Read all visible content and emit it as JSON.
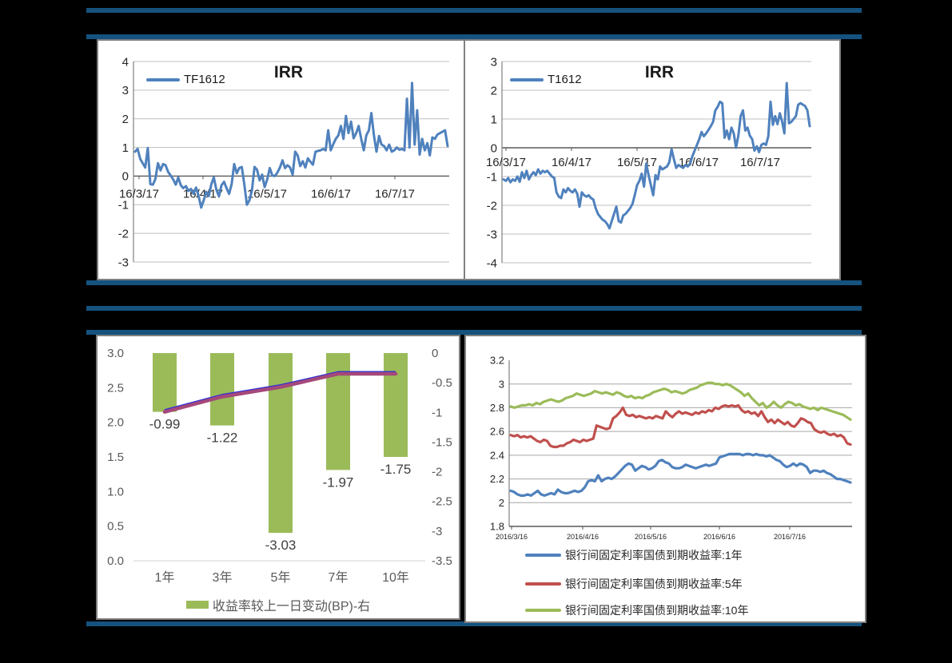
{
  "page": {
    "background_color": "#000000",
    "divider_color": "#15527E",
    "panel_color": "#FFFFFF"
  },
  "chart_data": [
    {
      "id": "tf1612_irr",
      "type": "line",
      "title": "IRR",
      "y_tick_labels": [
        "4",
        "3",
        "2",
        "1",
        "0",
        "-1",
        "-2",
        "-3"
      ],
      "x_tick_labels": [
        "16/3/17",
        "16/4/17",
        "16/5/17",
        "16/6/17",
        "16/7/17"
      ],
      "ylim": [
        -3,
        4
      ],
      "grid": true,
      "legend_position": "top-left",
      "series": [
        {
          "name": "TF1612",
          "color": "#4F81BD",
          "values": [
            0.85,
            0.95,
            0.6,
            0.45,
            0.3,
            0.98,
            -0.28,
            -0.3,
            -0.1,
            0.45,
            0.2,
            0.42,
            0.38,
            0.15,
            0.02,
            -0.12,
            -0.3,
            -0.05,
            -0.32,
            -0.42,
            -0.35,
            -0.52,
            -0.45,
            -0.62,
            -0.4,
            -0.7,
            -1.1,
            -0.85,
            -0.55,
            -0.7,
            -0.28,
            -0.05,
            -0.48,
            -0.7,
            -0.32,
            -0.2,
            -0.42,
            -0.62,
            -0.28,
            0.42,
            0.1,
            0.28,
            0.32,
            -0.3,
            -1.0,
            -0.85,
            -0.5,
            0.32,
            0.22,
            -0.15,
            0.05,
            -0.38,
            -0.12,
            0.28,
            0.02,
            0.0,
            0.12,
            0.3,
            0.55,
            0.28,
            0.38,
            0.3,
            0.05,
            0.85,
            0.72,
            0.35,
            0.52,
            0.3,
            0.62,
            0.5,
            0.4,
            0.85,
            0.88,
            0.9,
            0.95,
            0.9,
            1.6,
            0.9,
            1.12,
            1.3,
            1.42,
            1.75,
            1.3,
            2.1,
            1.5,
            1.9,
            1.32,
            1.5,
            1.75,
            1.3,
            0.9,
            1.42,
            1.6,
            2.2,
            1.42,
            0.85,
            1.4,
            1.1,
            1.05,
            0.9,
            1.1,
            0.85,
            0.9,
            1.0,
            0.92,
            0.95,
            0.9,
            2.7,
            1.0,
            3.25,
            1.1,
            2.3,
            0.75,
            1.3,
            0.9,
            1.15,
            0.72,
            1.35,
            1.3,
            1.45,
            1.5,
            1.55,
            1.6,
            1.05
          ]
        }
      ]
    },
    {
      "id": "t1612_irr",
      "type": "line",
      "title": "IRR",
      "y_tick_labels": [
        "3",
        "2",
        "1",
        "0",
        "-1",
        "-2",
        "-3",
        "-4"
      ],
      "x_tick_labels": [
        "16/3/17",
        "16/4/17",
        "16/5/17",
        "16/6/17",
        "16/7/17"
      ],
      "ylim": [
        -4,
        3
      ],
      "grid": true,
      "legend_position": "top-left",
      "series": [
        {
          "name": "T1612",
          "color": "#4F81BD",
          "values": [
            -1.1,
            -1.15,
            -1.05,
            -1.2,
            -1.1,
            -1.15,
            -1.0,
            -1.18,
            -0.85,
            -1.05,
            -0.8,
            -1.1,
            -0.95,
            -0.85,
            -0.95,
            -0.75,
            -0.9,
            -0.8,
            -0.85,
            -0.8,
            -0.9,
            -1.0,
            -1.05,
            -1.55,
            -1.7,
            -1.75,
            -1.45,
            -1.55,
            -1.4,
            -1.5,
            -1.55,
            -1.45,
            -1.6,
            -2.05,
            -1.55,
            -1.65,
            -1.7,
            -1.65,
            -1.75,
            -1.8,
            -2.1,
            -2.3,
            -2.4,
            -2.5,
            -2.55,
            -2.65,
            -2.8,
            -2.55,
            -2.3,
            -2.05,
            -2.55,
            -2.6,
            -2.35,
            -2.3,
            -2.2,
            -2.1,
            -1.95,
            -1.65,
            -1.3,
            -1.15,
            -0.9,
            -1.35,
            -0.55,
            -0.95,
            -1.3,
            -1.65,
            -0.95,
            -1.1,
            -0.65,
            -0.75,
            -0.7,
            -0.65,
            -0.5,
            -0.05,
            -0.4,
            -0.7,
            -0.6,
            -0.65,
            -0.7,
            -0.6,
            -0.65,
            -0.55,
            -0.3,
            -0.1,
            0.1,
            0.3,
            0.55,
            0.4,
            0.5,
            0.62,
            0.75,
            0.9,
            1.3,
            1.42,
            1.6,
            1.55,
            0.35,
            0.6,
            0.3,
            0.7,
            0.5,
            0.0,
            0.42,
            1.1,
            1.3,
            0.6,
            0.7,
            0.42,
            0.3,
            -0.1,
            0.05,
            -0.15,
            0.1,
            0.15,
            0.1,
            0.4,
            1.6,
            0.8,
            1.1,
            0.82,
            1.2,
            0.92,
            0.5,
            2.25,
            0.85,
            0.9,
            1.0,
            1.1,
            1.5,
            1.55,
            1.5,
            1.45,
            1.3,
            0.75
          ]
        }
      ]
    },
    {
      "id": "yield_change_bp",
      "type": "bar",
      "categories": [
        "1年",
        "3年",
        "5年",
        "7年",
        "10年"
      ],
      "bars": {
        "name": "收益率较上一日变动(BP)-右",
        "color": "#9BBB59",
        "values": [
          -0.99,
          -1.22,
          -3.03,
          -1.97,
          -1.75
        ],
        "labels": [
          "-0.99",
          "-1.22",
          "-3.03",
          "-1.97",
          "-1.75"
        ]
      },
      "left_axis_tick_labels": [
        "3.0",
        "2.5",
        "2.0",
        "1.5",
        "1.0",
        "0.5",
        "0.0"
      ],
      "left_axis_lim": [
        0.0,
        3.0
      ],
      "right_axis_tick_labels": [
        "0",
        "-0.5",
        "-1",
        "-1.5",
        "-2",
        "-2.5",
        "-3",
        "-3.5"
      ],
      "right_axis_lim": [
        -3.5,
        0
      ],
      "legend_position": "bottom-center",
      "lines": [
        {
          "color": "#2A2FD6",
          "values": [
            2.17,
            2.39,
            2.53,
            2.72,
            2.72
          ]
        },
        {
          "color": "#A5487A",
          "values": [
            2.15,
            2.37,
            2.51,
            2.7,
            2.7
          ]
        }
      ]
    },
    {
      "id": "cgb_yields",
      "type": "line",
      "y_tick_labels": [
        "3.2",
        "3",
        "2.8",
        "2.6",
        "2.4",
        "2.2",
        "2",
        "1.8"
      ],
      "x_tick_labels": [
        "2016/3/16",
        "2016/4/16",
        "2016/5/16",
        "2016/6/16",
        "2016/7/16"
      ],
      "ylim": [
        1.8,
        3.2
      ],
      "grid": true,
      "legend_position": "bottom-left",
      "series": [
        {
          "name": "银行间固定利率国债到期收益率:1年",
          "color": "#4F81BD",
          "values": [
            2.1,
            2.09,
            2.07,
            2.06,
            2.06,
            2.07,
            2.06,
            2.08,
            2.1,
            2.07,
            2.06,
            2.07,
            2.08,
            2.07,
            2.11,
            2.09,
            2.08,
            2.08,
            2.09,
            2.1,
            2.09,
            2.1,
            2.13,
            2.18,
            2.19,
            2.18,
            2.23,
            2.18,
            2.2,
            2.21,
            2.2,
            2.22,
            2.25,
            2.28,
            2.31,
            2.33,
            2.32,
            2.27,
            2.29,
            2.31,
            2.3,
            2.28,
            2.29,
            2.31,
            2.35,
            2.36,
            2.34,
            2.33,
            2.3,
            2.29,
            2.29,
            2.3,
            2.32,
            2.31,
            2.3,
            2.29,
            2.3,
            2.31,
            2.32,
            2.31,
            2.32,
            2.33,
            2.38,
            2.39,
            2.4,
            2.41,
            2.41,
            2.41,
            2.41,
            2.4,
            2.41,
            2.41,
            2.4,
            2.41,
            2.4,
            2.4,
            2.39,
            2.4,
            2.38,
            2.36,
            2.35,
            2.32,
            2.3,
            2.31,
            2.33,
            2.31,
            2.33,
            2.32,
            2.3,
            2.25,
            2.27,
            2.27,
            2.26,
            2.27,
            2.25,
            2.24,
            2.22,
            2.2,
            2.2,
            2.19,
            2.18,
            2.17
          ]
        },
        {
          "name": "银行间固定利率国债到期收益率:5年",
          "color": "#C0504D",
          "values": [
            2.57,
            2.56,
            2.57,
            2.55,
            2.56,
            2.55,
            2.56,
            2.54,
            2.52,
            2.51,
            2.53,
            2.52,
            2.48,
            2.47,
            2.47,
            2.48,
            2.48,
            2.5,
            2.51,
            2.53,
            2.52,
            2.51,
            2.53,
            2.52,
            2.53,
            2.54,
            2.65,
            2.64,
            2.63,
            2.62,
            2.63,
            2.71,
            2.73,
            2.76,
            2.8,
            2.74,
            2.73,
            2.74,
            2.72,
            2.73,
            2.72,
            2.71,
            2.72,
            2.71,
            2.73,
            2.72,
            2.71,
            2.77,
            2.74,
            2.72,
            2.75,
            2.77,
            2.75,
            2.76,
            2.75,
            2.74,
            2.76,
            2.75,
            2.77,
            2.76,
            2.78,
            2.77,
            2.8,
            2.79,
            2.81,
            2.82,
            2.81,
            2.82,
            2.81,
            2.82,
            2.78,
            2.76,
            2.77,
            2.75,
            2.76,
            2.73,
            2.77,
            2.72,
            2.68,
            2.7,
            2.67,
            2.7,
            2.68,
            2.66,
            2.68,
            2.65,
            2.64,
            2.67,
            2.71,
            2.7,
            2.68,
            2.67,
            2.62,
            2.6,
            2.59,
            2.6,
            2.58,
            2.57,
            2.58,
            2.56,
            2.57,
            2.55,
            2.5,
            2.49
          ]
        },
        {
          "name": "银行间固定利率国债到期收益率:10年",
          "color": "#9BBB59",
          "values": [
            2.81,
            2.8,
            2.81,
            2.82,
            2.82,
            2.83,
            2.82,
            2.84,
            2.83,
            2.85,
            2.86,
            2.87,
            2.86,
            2.85,
            2.86,
            2.88,
            2.89,
            2.9,
            2.92,
            2.91,
            2.9,
            2.91,
            2.92,
            2.94,
            2.93,
            2.92,
            2.93,
            2.92,
            2.91,
            2.93,
            2.92,
            2.9,
            2.89,
            2.9,
            2.88,
            2.89,
            2.88,
            2.9,
            2.91,
            2.93,
            2.94,
            2.95,
            2.96,
            2.95,
            2.93,
            2.94,
            2.93,
            2.92,
            2.93,
            2.95,
            2.96,
            2.97,
            2.99,
            3.0,
            3.01,
            3.01,
            3.0,
            3.0,
            2.99,
            3.0,
            2.99,
            2.97,
            2.95,
            2.93,
            2.9,
            2.92,
            2.88,
            2.85,
            2.82,
            2.84,
            2.8,
            2.82,
            2.85,
            2.82,
            2.8,
            2.83,
            2.85,
            2.84,
            2.82,
            2.83,
            2.81,
            2.8,
            2.79,
            2.8,
            2.78,
            2.8,
            2.79,
            2.78,
            2.77,
            2.76,
            2.75,
            2.74,
            2.72,
            2.7
          ]
        }
      ]
    }
  ]
}
